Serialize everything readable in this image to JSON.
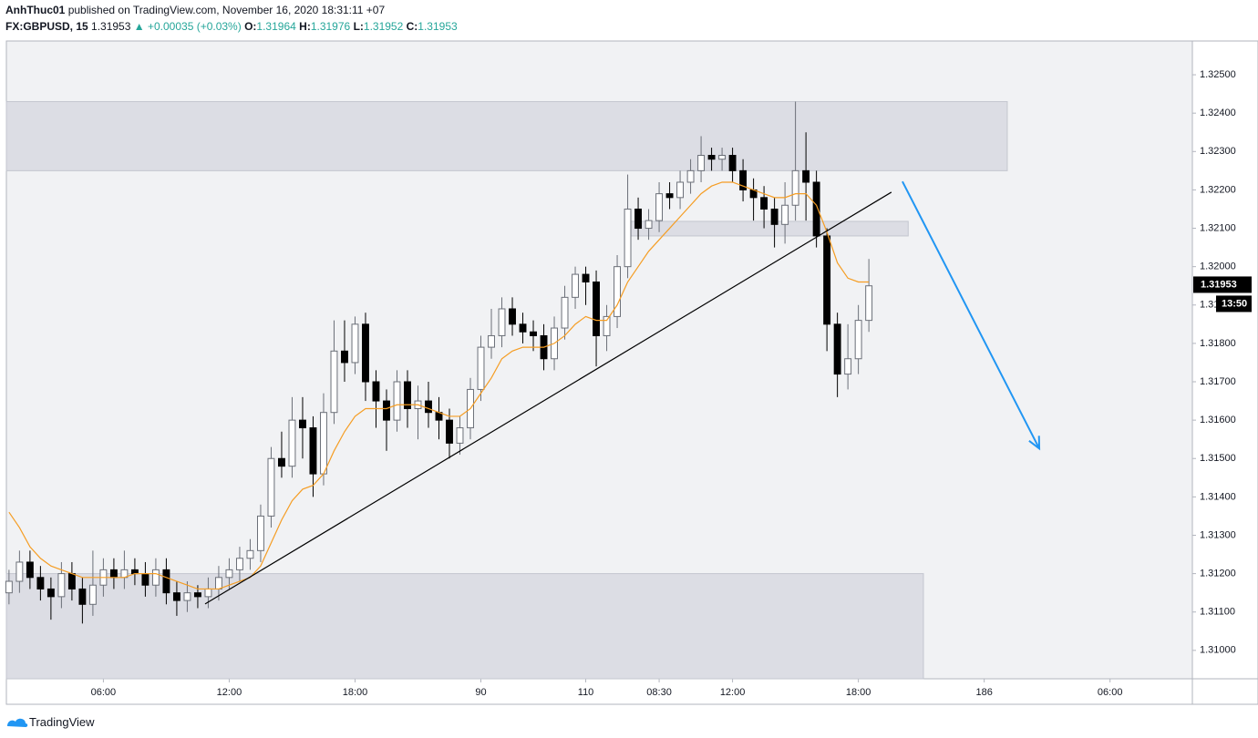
{
  "header": {
    "author": "AnhThuc01",
    "published": "published on TradingView.com, November 16, 2020 18:31:11 +07",
    "symbol": "FX:GBPUSD, 15",
    "price": "1.31953",
    "change": "▲ +0.00035 (+0.03%)",
    "o_label": "O:",
    "o": "1.31964",
    "h_label": "H:",
    "h": "1.31976",
    "l_label": "L:",
    "l": "1.31952",
    "c_label": "C:",
    "c": "1.31953"
  },
  "footer": {
    "brand": "TradingView"
  },
  "chart_data": {
    "type": "candlestick",
    "up_color": "#ffffff",
    "down_color": "#000000",
    "x": [
      0,
      2,
      4,
      6,
      8,
      10,
      12,
      14,
      16,
      18,
      20,
      22,
      24,
      26,
      28,
      30,
      32,
      34,
      36,
      38,
      40,
      42,
      44,
      46,
      48,
      50,
      52,
      54,
      56,
      58,
      60,
      62,
      64,
      66,
      68,
      70,
      72,
      74,
      76,
      78,
      80,
      82,
      84,
      86,
      88,
      90,
      92,
      94,
      96,
      98,
      100,
      102,
      104,
      106,
      108,
      110,
      112,
      114,
      116,
      118,
      120,
      122,
      124,
      126,
      128,
      130,
      132,
      134,
      136,
      138,
      140,
      142,
      144,
      146,
      148,
      150,
      152,
      154,
      156,
      158,
      160,
      162,
      164
    ],
    "open": [
      1.3115,
      1.3118,
      1.3123,
      1.3119,
      1.3116,
      1.3114,
      1.312,
      1.3116,
      1.3112,
      1.3117,
      1.3121,
      1.3119,
      1.3121,
      1.312,
      1.3117,
      1.3121,
      1.3115,
      1.3113,
      1.3115,
      1.3114,
      1.3116,
      1.3119,
      1.3121,
      1.3124,
      1.3126,
      1.3135,
      1.315,
      1.3148,
      1.316,
      1.3158,
      1.3146,
      1.3162,
      1.3178,
      1.3175,
      1.3185,
      1.317,
      1.3165,
      1.316,
      1.317,
      1.3163,
      1.3165,
      1.3162,
      1.316,
      1.3154,
      1.3158,
      1.3168,
      1.3179,
      1.3182,
      1.3189,
      1.3185,
      1.3183,
      1.3182,
      1.3176,
      1.3184,
      1.3192,
      1.3198,
      1.3196,
      1.3182,
      1.3187,
      1.32,
      1.3215,
      1.321,
      1.3212,
      1.3219,
      1.3218,
      1.3222,
      1.3225,
      1.3229,
      1.3228,
      1.3229,
      1.3225,
      1.322,
      1.3218,
      1.3215,
      1.3211,
      1.3216,
      1.3225,
      1.3222,
      1.3208,
      1.3185,
      1.3172,
      1.3176,
      1.3186
    ],
    "high": [
      1.3121,
      1.3126,
      1.3126,
      1.3122,
      1.3119,
      1.3123,
      1.3123,
      1.3119,
      1.3126,
      1.3124,
      1.3124,
      1.3126,
      1.3124,
      1.3123,
      1.3124,
      1.3124,
      1.3118,
      1.3118,
      1.3117,
      1.3119,
      1.3122,
      1.3124,
      1.3127,
      1.3129,
      1.3138,
      1.3153,
      1.3157,
      1.3166,
      1.3166,
      1.3161,
      1.3167,
      1.3186,
      1.3186,
      1.3187,
      1.3188,
      1.3173,
      1.3168,
      1.3173,
      1.3173,
      1.3169,
      1.317,
      1.3166,
      1.3163,
      1.3161,
      1.3171,
      1.3182,
      1.3189,
      1.3192,
      1.3192,
      1.3188,
      1.3186,
      1.3185,
      1.3187,
      1.3195,
      1.32,
      1.32,
      1.3199,
      1.319,
      1.3203,
      1.3224,
      1.3218,
      1.3215,
      1.3222,
      1.3222,
      1.3225,
      1.3228,
      1.3234,
      1.3231,
      1.3231,
      1.3231,
      1.3228,
      1.3223,
      1.3221,
      1.3218,
      1.3222,
      1.3243,
      1.3235,
      1.3225,
      1.321,
      1.3188,
      1.3185,
      1.319,
      1.3202
    ],
    "low": [
      1.3112,
      1.3115,
      1.3116,
      1.3113,
      1.3108,
      1.3111,
      1.3113,
      1.3107,
      1.3109,
      1.3114,
      1.3116,
      1.3116,
      1.3117,
      1.3114,
      1.3114,
      1.3112,
      1.3109,
      1.311,
      1.3111,
      1.3111,
      1.3113,
      1.3116,
      1.3118,
      1.3121,
      1.3123,
      1.3132,
      1.3145,
      1.3145,
      1.315,
      1.314,
      1.3143,
      1.3159,
      1.317,
      1.3172,
      1.3165,
      1.3158,
      1.3152,
      1.3157,
      1.3158,
      1.3155,
      1.3158,
      1.3155,
      1.315,
      1.3151,
      1.3155,
      1.3165,
      1.3176,
      1.3179,
      1.3182,
      1.318,
      1.3178,
      1.3173,
      1.3173,
      1.3181,
      1.3189,
      1.319,
      1.3174,
      1.3178,
      1.3184,
      1.3197,
      1.3207,
      1.3207,
      1.3209,
      1.3215,
      1.3215,
      1.3219,
      1.3222,
      1.3225,
      1.3225,
      1.3222,
      1.3217,
      1.3212,
      1.321,
      1.3205,
      1.3206,
      1.3212,
      1.3212,
      1.3205,
      1.3178,
      1.3166,
      1.3168,
      1.3172,
      1.3183
    ],
    "close": [
      1.3118,
      1.3123,
      1.3119,
      1.3116,
      1.3114,
      1.312,
      1.3116,
      1.3112,
      1.3117,
      1.3121,
      1.3119,
      1.3121,
      1.312,
      1.3117,
      1.3121,
      1.3115,
      1.3113,
      1.3115,
      1.3114,
      1.3116,
      1.3119,
      1.3121,
      1.3124,
      1.3126,
      1.3135,
      1.315,
      1.3148,
      1.316,
      1.3158,
      1.3146,
      1.3162,
      1.3178,
      1.3175,
      1.3185,
      1.317,
      1.3165,
      1.316,
      1.317,
      1.3163,
      1.3165,
      1.3162,
      1.316,
      1.3154,
      1.3158,
      1.3168,
      1.3179,
      1.3182,
      1.3189,
      1.3185,
      1.3183,
      1.3182,
      1.3176,
      1.3184,
      1.3192,
      1.3198,
      1.3196,
      1.3182,
      1.3187,
      1.32,
      1.3215,
      1.321,
      1.3212,
      1.3219,
      1.3218,
      1.3222,
      1.3225,
      1.3229,
      1.3228,
      1.3229,
      1.3225,
      1.322,
      1.3218,
      1.3215,
      1.3211,
      1.3216,
      1.3225,
      1.3222,
      1.3208,
      1.3185,
      1.3172,
      1.3176,
      1.3186,
      1.3195
    ],
    "ma": {
      "color": "#f59d23",
      "values": [
        1.3136,
        1.3132,
        1.3127,
        1.3124,
        1.3122,
        1.3121,
        1.312,
        1.3119,
        1.3119,
        1.3119,
        1.3119,
        1.3119,
        1.312,
        1.312,
        1.312,
        1.3119,
        1.3118,
        1.3117,
        1.3116,
        1.3116,
        1.3116,
        1.3117,
        1.3118,
        1.3119,
        1.3122,
        1.3128,
        1.3134,
        1.3139,
        1.3142,
        1.3143,
        1.3146,
        1.3152,
        1.3157,
        1.3161,
        1.3163,
        1.3163,
        1.3163,
        1.3164,
        1.3164,
        1.3164,
        1.3163,
        1.3162,
        1.3161,
        1.3161,
        1.3163,
        1.3167,
        1.3171,
        1.3176,
        1.3178,
        1.3179,
        1.3179,
        1.3179,
        1.318,
        1.3182,
        1.3185,
        1.3187,
        1.3186,
        1.3186,
        1.319,
        1.3196,
        1.32,
        1.3204,
        1.3207,
        1.321,
        1.3213,
        1.3216,
        1.3219,
        1.3221,
        1.3222,
        1.3222,
        1.3221,
        1.322,
        1.3219,
        1.3218,
        1.3218,
        1.3219,
        1.3219,
        1.3216,
        1.3209,
        1.3201,
        1.3197,
        1.3196,
        1.3196
      ]
    },
    "zones": [
      {
        "x": [
          -0.5,
          190.4
        ],
        "y": [
          1.3225,
          1.3243
        ]
      },
      {
        "x": [
          118.3,
          171.5
        ],
        "y": [
          1.3208,
          1.32118
        ]
      },
      {
        "x": [
          -0.5,
          174.4
        ],
        "y": [
          1.30926,
          1.312
        ]
      }
    ],
    "trendline": {
      "color": "#000000",
      "x": [
        37.4,
        168.3
      ],
      "y": [
        1.31121,
        1.32194
      ]
    },
    "arrow": {
      "color": "#2196f3",
      "x": [
        170.4,
        196.5
      ],
      "y": [
        1.32222,
        1.31526
      ]
    },
    "xlim": [
      -0.5,
      225.7
    ],
    "ylim": [
      1.30926,
      1.32588
    ],
    "xticks": [
      {
        "value": 18,
        "label": "06:00"
      },
      {
        "value": 42,
        "label": "12:00"
      },
      {
        "value": 66,
        "label": "18:00"
      },
      90,
      110,
      {
        "value": 124,
        "label": "08:30"
      },
      {
        "value": 138,
        "label": "12:00"
      },
      {
        "value": 162,
        "label": "18:00"
      },
      186,
      {
        "value": 210,
        "label": "06:00"
      }
    ],
    "yticks": [
      {
        "value": 1.31,
        "label": "1.31000"
      },
      {
        "value": 1.311,
        "label": "1.31100"
      },
      {
        "value": 1.312,
        "label": "1.31200"
      },
      {
        "value": 1.313,
        "label": "1.31300"
      },
      {
        "value": 1.314,
        "label": "1.31400"
      },
      {
        "value": 1.315,
        "label": "1.31500"
      },
      {
        "value": 1.316,
        "label": "1.31600"
      },
      {
        "value": 1.317,
        "label": "1.31700"
      },
      {
        "value": 1.318,
        "label": "1.31800"
      },
      {
        "value": 1.319,
        "label": "1.31900"
      },
      {
        "value": 1.32,
        "label": "1.32000"
      },
      {
        "value": 1.321,
        "label": "1.32100"
      },
      {
        "value": 1.322,
        "label": "1.32200"
      },
      {
        "value": 1.323,
        "label": "1.32300"
      },
      {
        "value": 1.324,
        "label": "1.32400"
      },
      {
        "value": 1.325,
        "label": "1.32500"
      }
    ],
    "last_price": {
      "value": 1.31953,
      "label": "1.31953",
      "countdown": "13:50"
    }
  }
}
